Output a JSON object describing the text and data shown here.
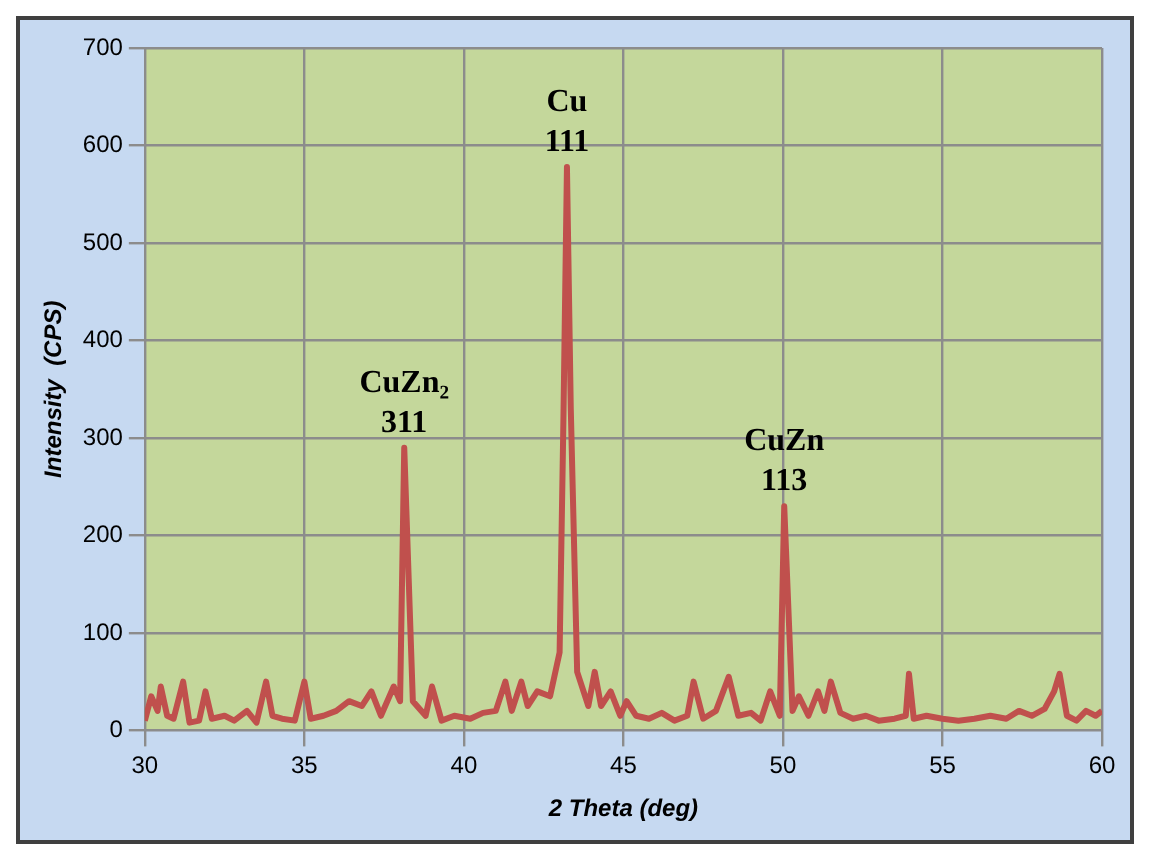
{
  "chart_data": {
    "type": "line",
    "xlabel": "2 Theta (deg)",
    "ylabel": "Intensity  (CPS)",
    "x": [
      30.0,
      30.2,
      30.4,
      30.5,
      30.7,
      30.9,
      31.2,
      31.4,
      31.7,
      31.9,
      32.1,
      32.5,
      32.8,
      33.2,
      33.5,
      33.8,
      34.0,
      34.3,
      34.7,
      35.0,
      35.2,
      35.6,
      36.0,
      36.4,
      36.8,
      37.1,
      37.4,
      37.8,
      38.0,
      38.13,
      38.4,
      38.8,
      39.0,
      39.3,
      39.7,
      40.2,
      40.6,
      41.0,
      41.3,
      41.5,
      41.8,
      42.0,
      42.3,
      42.7,
      43.0,
      43.12,
      43.23,
      43.35,
      43.55,
      43.9,
      44.1,
      44.3,
      44.6,
      44.9,
      45.1,
      45.4,
      45.8,
      46.2,
      46.6,
      47.0,
      47.2,
      47.5,
      47.9,
      48.3,
      48.6,
      49.0,
      49.3,
      49.6,
      49.9,
      50.04,
      50.3,
      50.5,
      50.8,
      51.1,
      51.3,
      51.5,
      51.8,
      52.2,
      52.6,
      53.0,
      53.5,
      53.85,
      53.95,
      54.1,
      54.5,
      55.0,
      55.5,
      56.0,
      56.5,
      57.0,
      57.4,
      57.8,
      58.2,
      58.5,
      58.67,
      58.9,
      59.2,
      59.5,
      59.8,
      60.0
    ],
    "series": [
      {
        "color": "#c0504d",
        "values": [
          10,
          35,
          20,
          45,
          15,
          12,
          50,
          8,
          10,
          40,
          12,
          15,
          10,
          20,
          8,
          50,
          15,
          12,
          10,
          50,
          12,
          15,
          20,
          30,
          25,
          40,
          15,
          45,
          30,
          290,
          30,
          15,
          45,
          10,
          15,
          12,
          18,
          20,
          50,
          20,
          50,
          25,
          40,
          35,
          80,
          320,
          578,
          330,
          60,
          25,
          60,
          25,
          40,
          15,
          30,
          15,
          12,
          18,
          10,
          15,
          50,
          12,
          20,
          55,
          15,
          18,
          10,
          40,
          15,
          230,
          20,
          35,
          15,
          40,
          20,
          50,
          18,
          12,
          15,
          10,
          12,
          15,
          58,
          12,
          15,
          12,
          10,
          12,
          15,
          12,
          20,
          15,
          22,
          40,
          58,
          15,
          10,
          20,
          15,
          20
        ]
      }
    ],
    "xlim": [
      30,
      60
    ],
    "xticks": [
      30,
      35,
      40,
      45,
      50,
      55,
      60
    ],
    "ylim": [
      0,
      700
    ],
    "yticks": [
      0,
      100,
      200,
      300,
      400,
      500,
      600,
      700
    ],
    "grid": true,
    "marker": "none",
    "line_style": "solid",
    "annotations": [
      {
        "text": "CuZn₂\n311",
        "x": 38.13,
        "y": 290
      },
      {
        "text": "Cu\n111",
        "x": 43.23,
        "y": 578
      },
      {
        "text": "CuZn\n113",
        "x": 50.04,
        "y": 230
      }
    ]
  }
}
